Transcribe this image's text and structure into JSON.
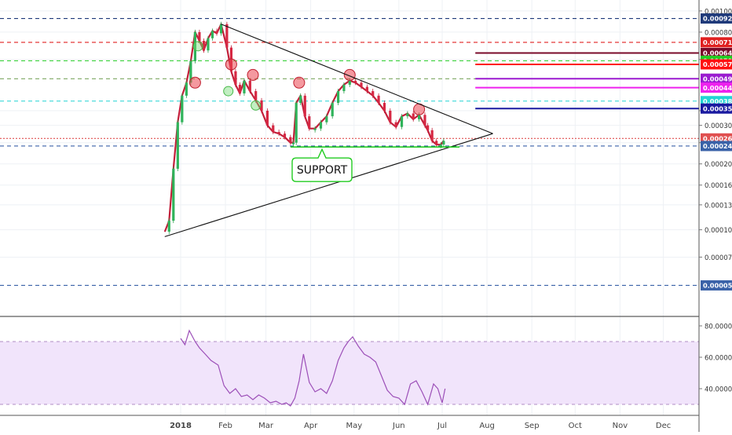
{
  "chart_data": {
    "type": "line",
    "main_panel": {
      "scale": "log",
      "ylim": [
        4.4e-05,
        0.00105
      ],
      "price_ticks": [
        "0.0010000",
        "0.0008000",
        "0.0006000",
        "0.0003500",
        "0.0003000",
        "0.0002500",
        "0.0002000",
        "0.0001600",
        "0.0001300",
        "0.0001000",
        "0.0000750"
      ],
      "price_values": [
        0.001,
        0.0008,
        0.0006,
        0.00035,
        0.0003,
        0.00025,
        0.0002,
        0.00016,
        0.00013,
        0.0001,
        7.5e-05
      ],
      "price_levels": [
        {
          "label": "0.0009235",
          "value": 0.0009235,
          "color": "#1f3a7a",
          "style": "dashed",
          "x_from": 0
        },
        {
          "label": "0.0007187",
          "value": 0.0007187,
          "color": "#e02020",
          "style": "dashed",
          "x_from": 0
        },
        {
          "label": "0.0006424",
          "value": 0.0006424,
          "color": "#7a0a2a",
          "style": "solid",
          "x_from": 0.68
        },
        {
          "label": "0.0005920",
          "value": 0.000592,
          "color": "#22cc22",
          "style": "dashed",
          "x_from": 0
        },
        {
          "label": "0.0005700",
          "value": 0.00057,
          "color": "#ff1010",
          "style": "solid",
          "x_from": 0.68
        },
        {
          "label": "0.0004896",
          "value": 0.0004896,
          "color": "#7ca862",
          "style": "dashed",
          "x_from": 0
        },
        {
          "label": "0.0004900",
          "value": 0.00049,
          "color": "#9b1bd0",
          "style": "solid",
          "x_from": 0.68
        },
        {
          "label": "0.0004460",
          "value": 0.000446,
          "color": "#ee22ee",
          "style": "solid",
          "x_from": 0.68
        },
        {
          "label": "0.0003872",
          "value": 0.0003872,
          "color": "#22d4d4",
          "style": "dashed",
          "x_from": 0
        },
        {
          "label": "0.0003580",
          "value": 0.000358,
          "color": "#1a1aa0",
          "style": "solid",
          "x_from": 0.68
        },
        {
          "label": "0.0002615",
          "value": 0.0002615,
          "color": "#e05050",
          "style": "dotted",
          "x_from": 0
        },
        {
          "label": "0.0002414",
          "value": 0.0002414,
          "color": "#3a62a8",
          "style": "dashed",
          "x_from": 0
        },
        {
          "label": "0.0000557",
          "value": 5.57e-05,
          "color": "#3a62a8",
          "style": "dashed",
          "x_from": 0
        }
      ],
      "series": [
        {
          "x": [
            "2017-12-21",
            "2017-12-24",
            "2017-12-27",
            "2017-12-30",
            "2018-01-02",
            "2018-01-05",
            "2018-01-08",
            "2018-01-11",
            "2018-01-14",
            "2018-01-17",
            "2018-01-20",
            "2018-01-23",
            "2018-01-26",
            "2018-01-29",
            "2018-02-02",
            "2018-02-05",
            "2018-02-08",
            "2018-02-11",
            "2018-02-14",
            "2018-02-18",
            "2018-02-22",
            "2018-02-26",
            "2018-03-02",
            "2018-03-06",
            "2018-03-10",
            "2018-03-14",
            "2018-03-18",
            "2018-03-20",
            "2018-03-22",
            "2018-03-25",
            "2018-03-28",
            "2018-03-31",
            "2018-04-04",
            "2018-04-08",
            "2018-04-12",
            "2018-04-16",
            "2018-04-20",
            "2018-04-24",
            "2018-04-28",
            "2018-05-02",
            "2018-05-06",
            "2018-05-10",
            "2018-05-14",
            "2018-05-18",
            "2018-05-22",
            "2018-05-26",
            "2018-05-30",
            "2018-06-03",
            "2018-06-07",
            "2018-06-11",
            "2018-06-15",
            "2018-06-19",
            "2018-06-21",
            "2018-06-24",
            "2018-06-27",
            "2018-06-30",
            "2018-07-02"
          ],
          "y": [
            9.8e-05,
            0.00011,
            0.00019,
            0.00031,
            0.00041,
            0.00047,
            0.00059,
            0.0008,
            0.00073,
            0.00066,
            0.00075,
            0.00081,
            0.00079,
            0.00087,
            0.00068,
            0.00053,
            0.00046,
            0.00042,
            0.00048,
            0.00043,
            0.00039,
            0.00035,
            0.0003,
            0.00028,
            0.000275,
            0.000265,
            0.00025,
            0.00025,
            0.00038,
            0.00041,
            0.00033,
            0.00029,
            0.00029,
            0.00031,
            0.00033,
            0.00038,
            0.00043,
            0.00046,
            0.00048,
            0.00047,
            0.00045,
            0.00043,
            0.00041,
            0.00038,
            0.00035,
            0.00031,
            0.000295,
            0.00033,
            0.00034,
            0.00032,
            0.000335,
            0.0003,
            0.000285,
            0.000255,
            0.000245,
            0.000245,
            0.000255
          ]
        }
      ],
      "markers": [
        {
          "x": "2018-01-13",
          "y": 0.00069,
          "color": "green"
        },
        {
          "x": "2018-02-03",
          "y": 0.00043,
          "color": "green"
        },
        {
          "x": "2018-02-22",
          "y": 0.00037,
          "color": "green"
        },
        {
          "x": "2018-01-11",
          "y": 0.00047,
          "color": "red"
        },
        {
          "x": "2018-02-05",
          "y": 0.00057,
          "color": "red"
        },
        {
          "x": "2018-02-20",
          "y": 0.00051,
          "color": "red"
        },
        {
          "x": "2018-03-24",
          "y": 0.00047,
          "color": "red"
        },
        {
          "x": "2018-04-28",
          "y": 0.00051,
          "color": "red"
        },
        {
          "x": "2018-06-15",
          "y": 0.000355,
          "color": "red"
        }
      ],
      "triangle": {
        "upper": [
          {
            "x": "2018-01-29",
            "y": 0.00087
          },
          {
            "x": "2018-08-05",
            "y": 0.000275
          }
        ],
        "lower": [
          {
            "x": "2017-12-21",
            "y": 9.3e-05
          },
          {
            "x": "2018-08-05",
            "y": 0.000275
          }
        ]
      },
      "support_line": {
        "x_from": "2018-03-18",
        "x_to": "2018-07-13",
        "value": 0.000239
      },
      "annotation": "SUPPORT"
    },
    "rsi_panel": {
      "ylim": [
        24,
        85
      ],
      "ticks": [
        "80.0000",
        "60.0000",
        "40.0000"
      ],
      "tick_values": [
        80,
        60,
        40
      ],
      "band": [
        30,
        70
      ],
      "band_color": "#f1e4fb",
      "line_color": "#9c4fb8",
      "x": [
        "2018-01-01",
        "2018-01-04",
        "2018-01-07",
        "2018-01-11",
        "2018-01-14",
        "2018-01-18",
        "2018-01-22",
        "2018-01-27",
        "2018-01-31",
        "2018-02-04",
        "2018-02-08",
        "2018-02-12",
        "2018-02-16",
        "2018-02-20",
        "2018-02-24",
        "2018-02-28",
        "2018-03-04",
        "2018-03-08",
        "2018-03-12",
        "2018-03-15",
        "2018-03-18",
        "2018-03-21",
        "2018-03-24",
        "2018-03-27",
        "2018-03-31",
        "2018-04-04",
        "2018-04-08",
        "2018-04-12",
        "2018-04-16",
        "2018-04-20",
        "2018-04-24",
        "2018-04-27",
        "2018-04-30",
        "2018-05-04",
        "2018-05-08",
        "2018-05-12",
        "2018-05-16",
        "2018-05-20",
        "2018-05-24",
        "2018-05-28",
        "2018-06-01",
        "2018-06-05",
        "2018-06-09",
        "2018-06-13",
        "2018-06-17",
        "2018-06-21",
        "2018-06-25",
        "2018-06-28",
        "2018-07-01",
        "2018-07-03"
      ],
      "values": [
        72,
        68,
        77,
        70,
        66,
        62,
        58,
        55,
        42,
        37,
        40,
        35,
        36,
        33,
        36,
        34,
        31,
        32,
        30,
        31,
        29,
        34,
        45,
        62,
        44,
        38,
        40,
        37,
        45,
        58,
        66,
        70,
        73,
        67,
        62,
        60,
        57,
        48,
        39,
        35,
        34,
        30,
        43,
        45,
        38,
        30,
        43,
        40,
        31,
        40
      ]
    },
    "x_axis": {
      "labels": [
        "2018",
        "Feb",
        "Mar",
        "Apr",
        "May",
        "Jun",
        "Jul",
        "Aug",
        "Sep",
        "Oct",
        "Nov",
        "Dec"
      ],
      "dates": [
        "2018-01-01",
        "2018-02-01",
        "2018-03-01",
        "2018-04-01",
        "2018-05-01",
        "2018-06-01",
        "2018-07-01",
        "2018-08-01",
        "2018-09-01",
        "2018-10-01",
        "2018-11-01",
        "2018-12-01"
      ]
    }
  }
}
